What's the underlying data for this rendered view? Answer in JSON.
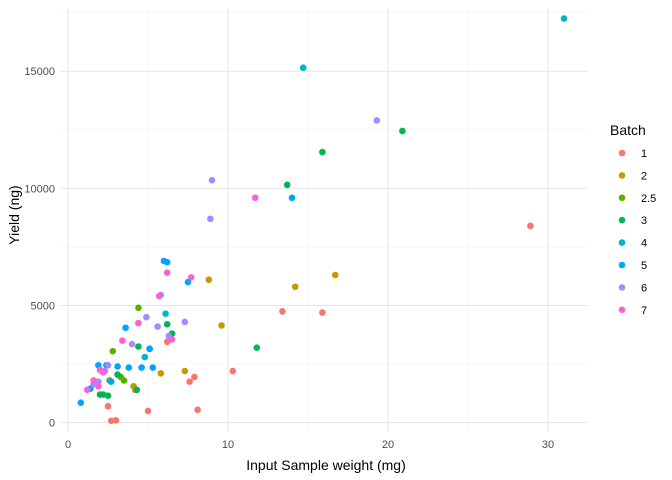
{
  "chart_data": {
    "type": "scatter",
    "xlabel": "Input Sample weight  (mg)",
    "ylabel": "Yield (ng)",
    "xlim": [
      -0.5,
      32.5
    ],
    "ylim": [
      -400,
      17700
    ],
    "x_ticks": [
      0,
      10,
      20,
      30
    ],
    "y_ticks": [
      0,
      5000,
      10000,
      15000
    ],
    "grid": true,
    "legend": {
      "title": "Batch",
      "position": "right"
    },
    "series": [
      {
        "name": "1",
        "color": "#F8766D",
        "points": [
          [
            2.5,
            700
          ],
          [
            2.7,
            80
          ],
          [
            3.0,
            100
          ],
          [
            4.2,
            1400
          ],
          [
            5.0,
            500
          ],
          [
            6.2,
            3450
          ],
          [
            7.6,
            1750
          ],
          [
            7.9,
            1950
          ],
          [
            8.1,
            550
          ],
          [
            10.3,
            2200
          ],
          [
            13.4,
            4750
          ],
          [
            15.9,
            4700
          ],
          [
            28.9,
            8400
          ]
        ]
      },
      {
        "name": "2",
        "color": "#C49A00",
        "points": [
          [
            4.1,
            1550
          ],
          [
            5.8,
            2100
          ],
          [
            7.3,
            2200
          ],
          [
            8.8,
            6100
          ],
          [
            9.6,
            4150
          ],
          [
            14.2,
            5800
          ],
          [
            16.7,
            6300
          ]
        ]
      },
      {
        "name": "2.5",
        "color": "#53B400",
        "points": [
          [
            2.6,
            1800
          ],
          [
            2.8,
            3050
          ],
          [
            3.3,
            1950
          ],
          [
            3.5,
            1800
          ],
          [
            4.4,
            4900
          ]
        ]
      },
      {
        "name": "3",
        "color": "#00B653",
        "points": [
          [
            2.0,
            1200
          ],
          [
            2.2,
            1200
          ],
          [
            2.5,
            1150
          ],
          [
            3.1,
            2050
          ],
          [
            4.3,
            1400
          ],
          [
            4.4,
            3250
          ],
          [
            5.1,
            3150
          ],
          [
            6.2,
            4200
          ],
          [
            6.5,
            3800
          ],
          [
            11.8,
            3200
          ],
          [
            13.7,
            10150
          ],
          [
            15.9,
            11550
          ],
          [
            20.9,
            12450
          ]
        ]
      },
      {
        "name": "4",
        "color": "#00B6C4",
        "points": [
          [
            4.8,
            2800
          ],
          [
            6.1,
            4650
          ],
          [
            14.7,
            15150
          ],
          [
            31.0,
            17250
          ]
        ]
      },
      {
        "name": "5",
        "color": "#00A5FF",
        "points": [
          [
            0.8,
            850
          ],
          [
            1.4,
            1450
          ],
          [
            1.9,
            2450
          ],
          [
            2.4,
            2450
          ],
          [
            2.7,
            1750
          ],
          [
            3.1,
            2400
          ],
          [
            3.6,
            4050
          ],
          [
            3.8,
            2350
          ],
          [
            4.6,
            2350
          ],
          [
            5.1,
            3150
          ],
          [
            5.3,
            2350
          ],
          [
            6.0,
            6900
          ],
          [
            6.2,
            6850
          ],
          [
            7.5,
            6000
          ],
          [
            14.0,
            9600
          ]
        ]
      },
      {
        "name": "6",
        "color": "#A58AFF",
        "points": [
          [
            1.6,
            1650
          ],
          [
            1.9,
            1750
          ],
          [
            2.3,
            2200
          ],
          [
            2.5,
            2450
          ],
          [
            4.0,
            3350
          ],
          [
            4.9,
            4500
          ],
          [
            5.6,
            4100
          ],
          [
            5.8,
            5450
          ],
          [
            6.3,
            3700
          ],
          [
            7.3,
            4300
          ],
          [
            8.9,
            8700
          ],
          [
            9.0,
            10350
          ],
          [
            19.3,
            12900
          ]
        ]
      },
      {
        "name": "7",
        "color": "#FB61D7",
        "points": [
          [
            1.2,
            1400
          ],
          [
            1.6,
            1800
          ],
          [
            1.9,
            1550
          ],
          [
            2.0,
            2250
          ],
          [
            2.2,
            2150
          ],
          [
            3.4,
            3500
          ],
          [
            4.4,
            4250
          ],
          [
            5.7,
            5400
          ],
          [
            6.2,
            6400
          ],
          [
            6.5,
            3550
          ],
          [
            7.7,
            6200
          ],
          [
            11.7,
            9600
          ]
        ]
      }
    ]
  }
}
